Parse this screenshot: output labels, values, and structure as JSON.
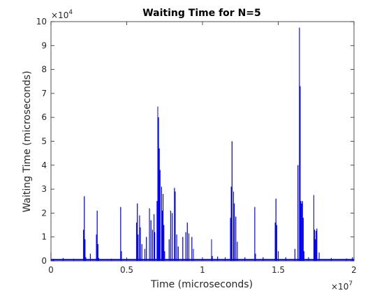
{
  "chart_data": {
    "type": "line",
    "title": "Waiting Time for N=5",
    "xlabel": "Time (microseconds)",
    "ylabel": "Waiting Time (microseconds)",
    "x_multiplier": {
      "base": "×10",
      "power": "7"
    },
    "y_multiplier": {
      "base": "×10",
      "power": "4"
    },
    "xlim": [
      0,
      20000000
    ],
    "ylim": [
      0,
      100000
    ],
    "x_ticks": [
      0,
      5000000,
      10000000,
      15000000,
      20000000
    ],
    "x_tick_labels": [
      "0",
      "0.5",
      "1",
      "1.5",
      "2"
    ],
    "y_ticks": [
      0,
      10000,
      20000,
      30000,
      40000,
      50000,
      60000,
      70000,
      80000,
      90000,
      100000
    ],
    "y_tick_labels": [
      "0",
      "1",
      "2",
      "3",
      "4",
      "5",
      "6",
      "7",
      "8",
      "9",
      "10"
    ],
    "grid": false,
    "box": true,
    "series": [
      {
        "color": "#0000ff",
        "points": [
          [
            0,
            3500
          ],
          [
            150000,
            800
          ],
          [
            800000,
            1200
          ],
          [
            1500000,
            900
          ],
          [
            2150000,
            13000
          ],
          [
            2200000,
            27000
          ],
          [
            2250000,
            9000
          ],
          [
            2300000,
            1500
          ],
          [
            2600000,
            3000
          ],
          [
            3000000,
            11000
          ],
          [
            3050000,
            21000
          ],
          [
            3100000,
            7000
          ],
          [
            3150000,
            1200
          ],
          [
            4000000,
            900
          ],
          [
            4600000,
            22500
          ],
          [
            4650000,
            4000
          ],
          [
            5000000,
            1200
          ],
          [
            5650000,
            16000
          ],
          [
            5700000,
            24000
          ],
          [
            5750000,
            11000
          ],
          [
            5850000,
            19000
          ],
          [
            5900000,
            14000
          ],
          [
            6000000,
            7000
          ],
          [
            6200000,
            5000
          ],
          [
            6300000,
            10000
          ],
          [
            6500000,
            22000
          ],
          [
            6600000,
            17000
          ],
          [
            6700000,
            13000
          ],
          [
            6800000,
            19500
          ],
          [
            6850000,
            12000
          ],
          [
            7000000,
            25000
          ],
          [
            7050000,
            64500
          ],
          [
            7100000,
            60000
          ],
          [
            7150000,
            47000
          ],
          [
            7200000,
            38000
          ],
          [
            7300000,
            31000
          ],
          [
            7350000,
            21000
          ],
          [
            7400000,
            28000
          ],
          [
            7450000,
            15000
          ],
          [
            7500000,
            4000
          ],
          [
            7800000,
            9000
          ],
          [
            7900000,
            21000
          ],
          [
            8000000,
            20000
          ],
          [
            8150000,
            30500
          ],
          [
            8200000,
            29000
          ],
          [
            8300000,
            11000
          ],
          [
            8400000,
            6000
          ],
          [
            8700000,
            10000
          ],
          [
            8900000,
            12000
          ],
          [
            9000000,
            16000
          ],
          [
            9100000,
            11500
          ],
          [
            9300000,
            10000
          ],
          [
            9400000,
            5000
          ],
          [
            10000000,
            1500
          ],
          [
            10600000,
            9000
          ],
          [
            10650000,
            2000
          ],
          [
            11000000,
            1800
          ],
          [
            11500000,
            1500
          ],
          [
            11850000,
            18000
          ],
          [
            11900000,
            31000
          ],
          [
            11950000,
            50000
          ],
          [
            12050000,
            29000
          ],
          [
            12100000,
            24000
          ],
          [
            12200000,
            18500
          ],
          [
            12300000,
            8000
          ],
          [
            12800000,
            1500
          ],
          [
            13450000,
            22500
          ],
          [
            13500000,
            3000
          ],
          [
            14000000,
            1500
          ],
          [
            14800000,
            16000
          ],
          [
            14850000,
            26000
          ],
          [
            14900000,
            15000
          ],
          [
            15000000,
            4000
          ],
          [
            15500000,
            1500
          ],
          [
            16100000,
            5000
          ],
          [
            16300000,
            40000
          ],
          [
            16400000,
            97500
          ],
          [
            16450000,
            73000
          ],
          [
            16500000,
            25000
          ],
          [
            16550000,
            24000
          ],
          [
            16600000,
            25000
          ],
          [
            16650000,
            18000
          ],
          [
            16700000,
            4000
          ],
          [
            17000000,
            1500
          ],
          [
            17350000,
            27500
          ],
          [
            17400000,
            13000
          ],
          [
            17450000,
            9000
          ],
          [
            17500000,
            12500
          ],
          [
            17550000,
            13500
          ],
          [
            17700000,
            3500
          ],
          [
            18500000,
            1200
          ],
          [
            19500000,
            1000
          ],
          [
            19900000,
            1500
          ],
          [
            20000000,
            800
          ]
        ]
      }
    ]
  }
}
